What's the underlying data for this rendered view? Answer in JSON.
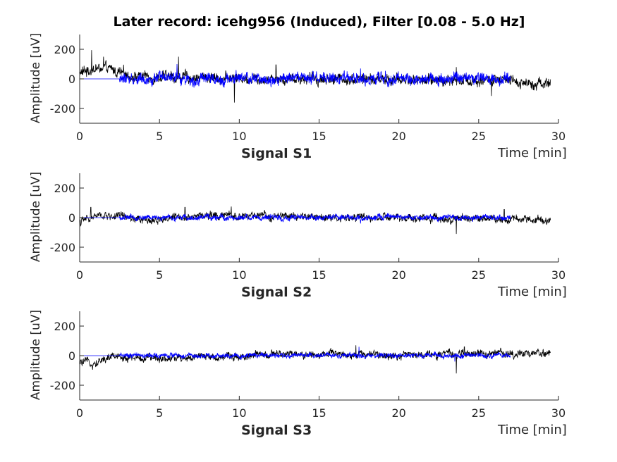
{
  "figure": {
    "title": "Later record: icehg956 (Induced), Filter [0.08 - 5.0 Hz]"
  },
  "colors": {
    "raw": "#000000",
    "filtered": "#0000ff",
    "axis": "#262626",
    "background": "#ffffff"
  },
  "chart_data": [
    {
      "type": "line",
      "subtitle": "Signal S1",
      "xlabel": "Time [min]",
      "ylabel": "Amplitude [uV]",
      "xlim": [
        0,
        30
      ],
      "ylim": [
        -300,
        300
      ],
      "xticks": [
        0,
        5,
        10,
        15,
        20,
        25,
        30
      ],
      "yticks": [
        200,
        0,
        -200
      ],
      "grid": false,
      "series": [
        {
          "color": "#000000",
          "x_range": [
            0,
            29.5
          ],
          "level_points": [
            [
              0,
              40
            ],
            [
              1,
              70
            ],
            [
              2,
              60
            ],
            [
              3,
              25
            ],
            [
              5,
              10
            ],
            [
              8,
              10
            ],
            [
              12,
              5
            ],
            [
              16,
              0
            ],
            [
              20,
              -5
            ],
            [
              25,
              -10
            ],
            [
              29.5,
              -30
            ]
          ],
          "amplitude": 40,
          "spikes": [
            [
              0.75,
              195
            ],
            [
              1.5,
              150
            ],
            [
              6.2,
              150
            ],
            [
              9.7,
              -160
            ],
            [
              12.3,
              95
            ],
            [
              23.6,
              80
            ],
            [
              25.8,
              -115
            ]
          ]
        },
        {
          "color": "#0000ff",
          "x_range": [
            0,
            27.0
          ],
          "level_points": [
            [
              0,
              0
            ],
            [
              2.5,
              0
            ],
            [
              27,
              0
            ]
          ],
          "amplitude": 40,
          "onset": 2.5,
          "spikes": [
            [
              6.1,
              100
            ],
            [
              9.8,
              60
            ],
            [
              17.6,
              70
            ]
          ]
        }
      ]
    },
    {
      "type": "line",
      "subtitle": "Signal S2",
      "xlabel": "Time [min]",
      "ylabel": "Amplitude [uV]",
      "xlim": [
        0,
        30
      ],
      "ylim": [
        -300,
        300
      ],
      "xticks": [
        0,
        5,
        10,
        15,
        20,
        25,
        30
      ],
      "yticks": [
        200,
        0,
        -200
      ],
      "grid": false,
      "series": [
        {
          "color": "#000000",
          "x_range": [
            0,
            29.5
          ],
          "level_points": [
            [
              0,
              -30
            ],
            [
              1,
              10
            ],
            [
              2.5,
              10
            ],
            [
              4,
              -25
            ],
            [
              5,
              -10
            ],
            [
              7,
              15
            ],
            [
              10,
              10
            ],
            [
              15,
              5
            ],
            [
              20,
              -5
            ],
            [
              25,
              -5
            ],
            [
              29.5,
              -10
            ]
          ],
          "amplitude": 28,
          "spikes": [
            [
              0.7,
              70
            ],
            [
              6.6,
              70
            ],
            [
              9.5,
              75
            ],
            [
              23.6,
              -110
            ],
            [
              26.6,
              55
            ]
          ]
        },
        {
          "color": "#0000ff",
          "x_range": [
            0,
            27.0
          ],
          "level_points": [
            [
              0,
              0
            ],
            [
              2.5,
              0
            ],
            [
              27,
              0
            ]
          ],
          "amplitude": 20,
          "onset": 2.5,
          "spikes": [
            [
              17.6,
              -40
            ]
          ]
        }
      ]
    },
    {
      "type": "line",
      "subtitle": "Signal S3",
      "xlabel": "Time [min]",
      "ylabel": "Amplitude [uV]",
      "xlim": [
        0,
        30
      ],
      "ylim": [
        -300,
        300
      ],
      "xticks": [
        0,
        5,
        10,
        15,
        20,
        25,
        30
      ],
      "yticks": [
        200,
        0,
        -200
      ],
      "grid": false,
      "series": [
        {
          "color": "#000000",
          "x_range": [
            0,
            29.5
          ],
          "level_points": [
            [
              0,
              -50
            ],
            [
              1,
              -45
            ],
            [
              2,
              -5
            ],
            [
              4,
              -20
            ],
            [
              5,
              -15
            ],
            [
              8,
              -10
            ],
            [
              12,
              5
            ],
            [
              16,
              10
            ],
            [
              20,
              5
            ],
            [
              24,
              10
            ],
            [
              29.5,
              20
            ]
          ],
          "amplitude": 28,
          "spikes": [
            [
              0.8,
              -95
            ],
            [
              17.3,
              70
            ],
            [
              23.6,
              -120
            ],
            [
              24.1,
              60
            ]
          ]
        },
        {
          "color": "#0000ff",
          "x_range": [
            0,
            27.0
          ],
          "level_points": [
            [
              0,
              0
            ],
            [
              2.5,
              0
            ],
            [
              27,
              0
            ]
          ],
          "amplitude": 18,
          "onset": 2.5,
          "spikes": [
            [
              17.5,
              60
            ],
            [
              23.5,
              -40
            ]
          ]
        }
      ]
    }
  ]
}
